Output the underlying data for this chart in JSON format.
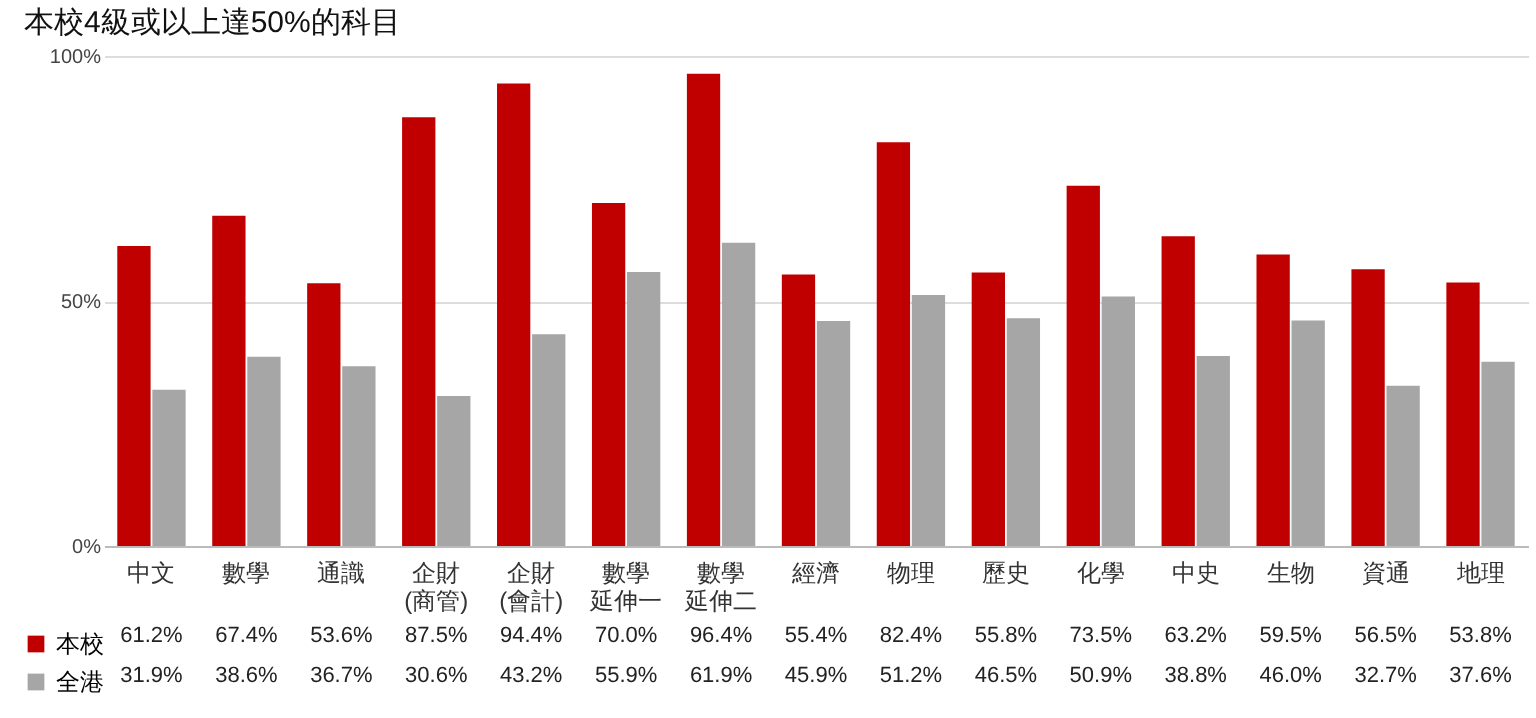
{
  "chart_data": {
    "type": "bar",
    "title": "本校4級或以上達50%的科目",
    "categories": [
      "中文",
      "數學",
      "通識",
      "企財(商管)",
      "企財(會計)",
      "數學延伸一",
      "數學延伸二",
      "經濟",
      "物理",
      "歷史",
      "化學",
      "中史",
      "生物",
      "資通",
      "地理"
    ],
    "series": [
      {
        "name": "本校",
        "color": "#c00000",
        "values": [
          61.2,
          67.4,
          53.6,
          87.5,
          94.4,
          70.0,
          96.4,
          55.4,
          82.4,
          55.8,
          73.5,
          63.2,
          59.5,
          56.5,
          53.8
        ],
        "value_labels": [
          "61.2%",
          "67.4%",
          "53.6%",
          "87.5%",
          "94.4%",
          "70.0%",
          "96.4%",
          "55.4%",
          "82.4%",
          "55.8%",
          "73.5%",
          "63.2%",
          "59.5%",
          "56.5%",
          "53.8%"
        ]
      },
      {
        "name": "全港",
        "color": "#a6a6a6",
        "values": [
          31.9,
          38.6,
          36.7,
          30.6,
          43.2,
          55.9,
          61.9,
          45.9,
          51.2,
          46.5,
          50.9,
          38.8,
          46.0,
          32.7,
          37.6
        ],
        "value_labels": [
          "31.9%",
          "38.6%",
          "36.7%",
          "30.6%",
          "43.2%",
          "55.9%",
          "61.9%",
          "45.9%",
          "51.2%",
          "46.5%",
          "50.9%",
          "38.8%",
          "46.0%",
          "32.7%",
          "37.6%"
        ]
      }
    ],
    "ylim": [
      0,
      100
    ],
    "yticks": [
      {
        "value": 0,
        "label": "0%"
      },
      {
        "value": 50,
        "label": "50%"
      },
      {
        "value": 100,
        "label": "100%"
      }
    ],
    "grid": "y",
    "legend": "bottom left"
  }
}
